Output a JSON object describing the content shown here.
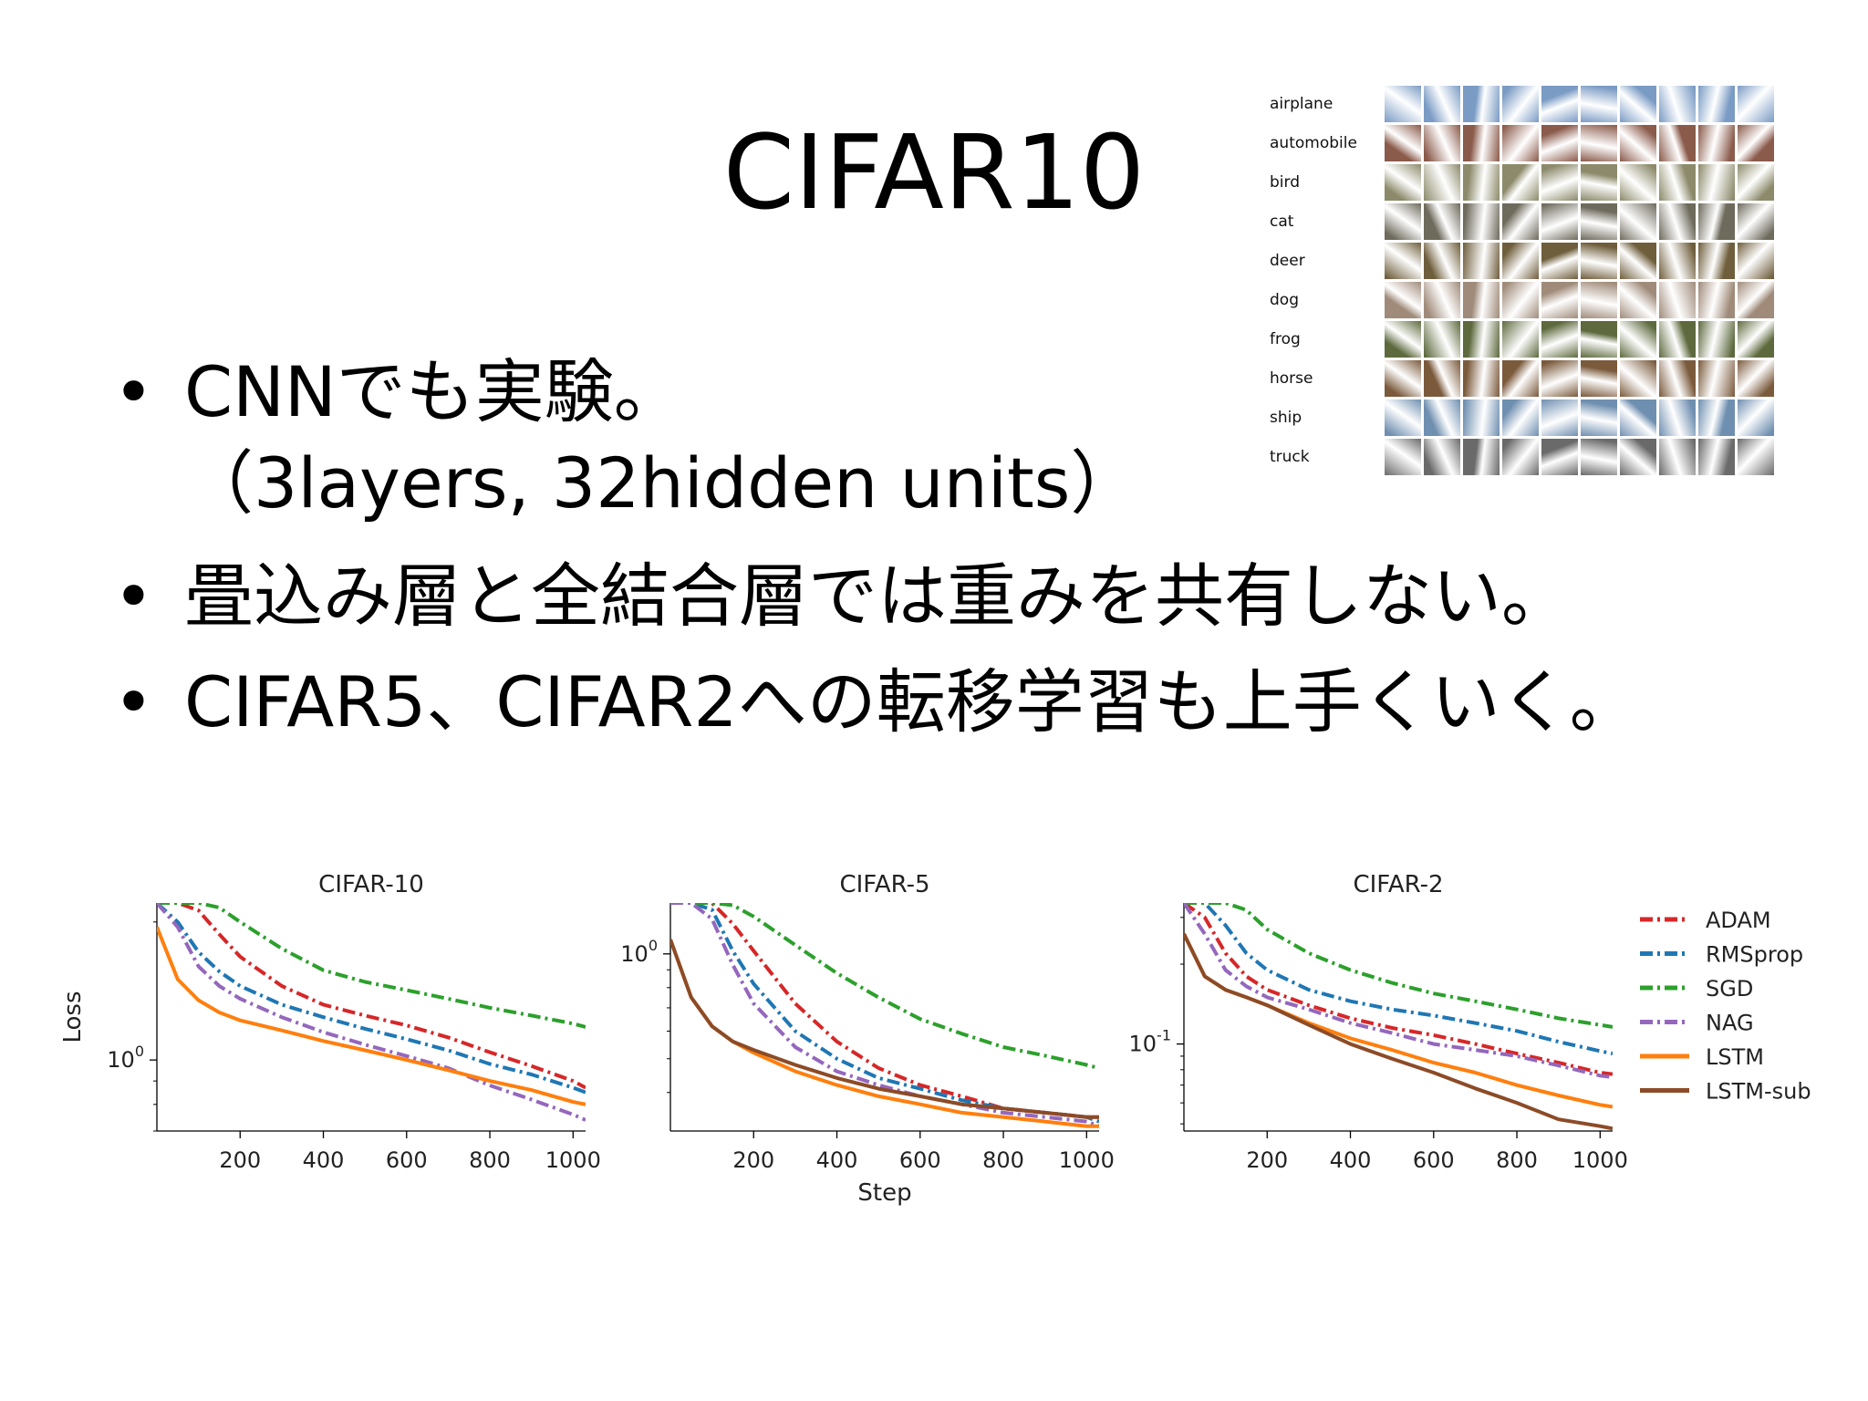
{
  "slide": {
    "title": "CIFAR10",
    "bullet_glyph": "•",
    "bullets": [
      {
        "line1": "CNNでも実験。",
        "line2": "（3layers, 32hidden units）"
      },
      {
        "line1": "畳込み層と全結合層では重みを共有しない。"
      },
      {
        "line1": "CIFAR5、CIFAR2への転移学習も上手くいく。"
      }
    ]
  },
  "cifar_grid": {
    "classes": [
      "airplane",
      "automobile",
      "bird",
      "cat",
      "deer",
      "dog",
      "frog",
      "horse",
      "ship",
      "truck"
    ],
    "tone_colors": [
      "#7a9bc4",
      "#8a5a4a",
      "#8c8a6a",
      "#6e6a5c",
      "#6f5e3c",
      "#a08b7a",
      "#5e6a3e",
      "#7b5a3c",
      "#6f8fb0",
      "#6a6a6a"
    ]
  },
  "legend": [
    {
      "name": "ADAM",
      "color": "#d62728",
      "style": "dashdot"
    },
    {
      "name": "RMSprop",
      "color": "#1f77b4",
      "style": "dashdot"
    },
    {
      "name": "SGD",
      "color": "#2ca02c",
      "style": "dashdot"
    },
    {
      "name": "NAG",
      "color": "#9467bd",
      "style": "dashdot"
    },
    {
      "name": "LSTM",
      "color": "#ff7f0e",
      "style": "solid"
    },
    {
      "name": "LSTM-sub",
      "color": "#8c4b27",
      "style": "solid"
    }
  ],
  "chart_data": [
    {
      "type": "line",
      "title": "CIFAR-10",
      "ylabel": "Loss",
      "xlabel": "",
      "xlim": [
        0,
        1030
      ],
      "ylim": [
        0.7,
        2.2
      ],
      "yscale": "log",
      "xticks": [
        200,
        400,
        600,
        800,
        1000
      ],
      "yticks": [
        {
          "value": 1.0,
          "label": "10",
          "exp": "0"
        }
      ],
      "x": [
        0,
        50,
        100,
        150,
        200,
        300,
        400,
        500,
        600,
        700,
        800,
        900,
        1000,
        1030
      ],
      "series": [
        {
          "name": "ADAM",
          "values": [
            2.2,
            2.2,
            2.12,
            1.88,
            1.68,
            1.45,
            1.32,
            1.25,
            1.19,
            1.12,
            1.04,
            0.97,
            0.9,
            0.87
          ]
        },
        {
          "name": "RMSprop",
          "values": [
            2.2,
            2.0,
            1.72,
            1.56,
            1.45,
            1.32,
            1.24,
            1.17,
            1.11,
            1.05,
            0.98,
            0.93,
            0.87,
            0.85
          ]
        },
        {
          "name": "SGD",
          "values": [
            2.2,
            2.2,
            2.2,
            2.15,
            2.0,
            1.75,
            1.57,
            1.48,
            1.42,
            1.36,
            1.3,
            1.25,
            1.2,
            1.18
          ]
        },
        {
          "name": "NAG",
          "values": [
            2.2,
            1.95,
            1.6,
            1.45,
            1.36,
            1.24,
            1.15,
            1.08,
            1.02,
            0.96,
            0.88,
            0.82,
            0.76,
            0.74
          ]
        },
        {
          "name": "LSTM",
          "values": [
            1.95,
            1.5,
            1.35,
            1.27,
            1.22,
            1.16,
            1.1,
            1.05,
            1.0,
            0.95,
            0.9,
            0.86,
            0.81,
            0.8
          ]
        }
      ]
    },
    {
      "type": "line",
      "title": "CIFAR-5",
      "ylabel": "",
      "xlabel": "Step",
      "xlim": [
        0,
        1030
      ],
      "ylim": [
        0.31,
        1.4
      ],
      "yscale": "log",
      "xticks": [
        200,
        400,
        600,
        800,
        1000
      ],
      "yticks": [
        {
          "value": 1.0,
          "label": "10",
          "exp": "0"
        }
      ],
      "x": [
        0,
        50,
        100,
        150,
        200,
        300,
        400,
        500,
        600,
        700,
        800,
        900,
        1000,
        1030
      ],
      "series": [
        {
          "name": "ADAM",
          "values": [
            1.4,
            1.4,
            1.4,
            1.22,
            1.02,
            0.72,
            0.56,
            0.47,
            0.42,
            0.39,
            0.36,
            0.35,
            0.34,
            0.34
          ]
        },
        {
          "name": "RMSprop",
          "values": [
            1.4,
            1.4,
            1.34,
            1.02,
            0.82,
            0.6,
            0.5,
            0.44,
            0.41,
            0.38,
            0.36,
            0.35,
            0.34,
            0.33
          ]
        },
        {
          "name": "SGD",
          "values": [
            1.4,
            1.4,
            1.4,
            1.38,
            1.28,
            1.06,
            0.88,
            0.75,
            0.65,
            0.59,
            0.54,
            0.51,
            0.48,
            0.47
          ]
        },
        {
          "name": "NAG",
          "values": [
            1.4,
            1.4,
            1.26,
            0.93,
            0.72,
            0.54,
            0.46,
            0.42,
            0.39,
            0.37,
            0.35,
            0.34,
            0.33,
            0.32
          ]
        },
        {
          "name": "LSTM",
          "values": [
            1.1,
            0.75,
            0.62,
            0.56,
            0.52,
            0.46,
            0.42,
            0.39,
            0.37,
            0.35,
            0.34,
            0.33,
            0.32,
            0.32
          ]
        },
        {
          "name": "LSTM-sub",
          "values": [
            1.1,
            0.75,
            0.62,
            0.56,
            0.53,
            0.48,
            0.44,
            0.41,
            0.39,
            0.37,
            0.36,
            0.35,
            0.34,
            0.34
          ]
        }
      ]
    },
    {
      "type": "line",
      "title": "CIFAR-2",
      "ylabel": "",
      "xlabel": "",
      "xlim": [
        0,
        1030
      ],
      "ylim": [
        0.047,
        0.34
      ],
      "yscale": "log",
      "xticks": [
        200,
        400,
        600,
        800,
        1000
      ],
      "yticks": [
        {
          "value": 0.1,
          "label": "10",
          "exp": "-1"
        }
      ],
      "x": [
        0,
        50,
        100,
        150,
        200,
        300,
        400,
        500,
        600,
        700,
        800,
        900,
        1000,
        1030
      ],
      "series": [
        {
          "name": "ADAM",
          "values": [
            0.34,
            0.3,
            0.22,
            0.18,
            0.16,
            0.14,
            0.125,
            0.115,
            0.108,
            0.1,
            0.092,
            0.085,
            0.078,
            0.077
          ]
        },
        {
          "name": "RMSprop",
          "values": [
            0.34,
            0.34,
            0.28,
            0.22,
            0.19,
            0.16,
            0.145,
            0.135,
            0.128,
            0.12,
            0.112,
            0.102,
            0.094,
            0.092
          ]
        },
        {
          "name": "SGD",
          "values": [
            0.34,
            0.34,
            0.34,
            0.32,
            0.27,
            0.22,
            0.19,
            0.17,
            0.155,
            0.145,
            0.135,
            0.125,
            0.118,
            0.116
          ]
        },
        {
          "name": "NAG",
          "values": [
            0.34,
            0.26,
            0.19,
            0.165,
            0.15,
            0.135,
            0.12,
            0.11,
            0.1,
            0.095,
            0.09,
            0.083,
            0.076,
            0.075
          ]
        },
        {
          "name": "LSTM",
          "values": [
            0.26,
            0.18,
            0.16,
            0.15,
            0.14,
            0.12,
            0.105,
            0.095,
            0.085,
            0.078,
            0.07,
            0.064,
            0.059,
            0.058
          ]
        },
        {
          "name": "LSTM-sub",
          "values": [
            0.26,
            0.18,
            0.16,
            0.15,
            0.14,
            0.118,
            0.1,
            0.088,
            0.078,
            0.068,
            0.06,
            0.052,
            0.049,
            0.048
          ]
        }
      ]
    }
  ]
}
